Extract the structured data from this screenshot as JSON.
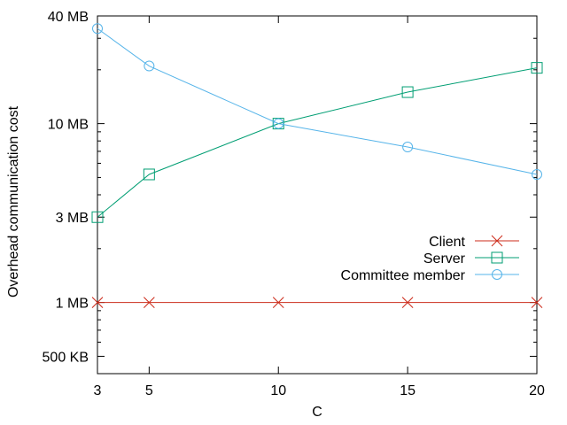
{
  "chart_data": {
    "type": "line",
    "xlabel": "C",
    "ylabel": "Overhead communication cost",
    "x": [
      3,
      5,
      10,
      15,
      20
    ],
    "xticks": [
      3,
      5,
      10,
      15,
      20
    ],
    "xlim": [
      3,
      20
    ],
    "yscale": "log",
    "ylim_mb": [
      0.4,
      40
    ],
    "yticks": [
      {
        "value_mb": 40,
        "label": "40 MB"
      },
      {
        "value_mb": 10,
        "label": "10 MB"
      },
      {
        "value_mb": 3,
        "label": "3 MB"
      },
      {
        "value_mb": 1,
        "label": "1 MB"
      },
      {
        "value_mb": 0.5,
        "label": "500 KB"
      }
    ],
    "grid": false,
    "legend_position": "right",
    "series": [
      {
        "name": "Client",
        "values_mb": [
          1,
          1,
          1,
          1,
          1
        ],
        "color": "#cc2b1a",
        "marker": "x"
      },
      {
        "name": "Server",
        "values_mb": [
          3,
          5.2,
          10,
          15,
          20.5
        ],
        "color": "#009e73",
        "marker": "square"
      },
      {
        "name": "Committee member",
        "values_mb": [
          34,
          21,
          10,
          7.4,
          5.2
        ],
        "color": "#56b4e9",
        "marker": "circle"
      }
    ]
  }
}
